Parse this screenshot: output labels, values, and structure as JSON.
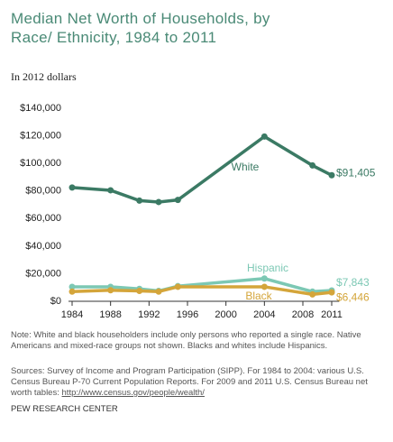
{
  "chart_data": {
    "type": "line",
    "title": "Median Net Worth of Households, by Race/ Ethnicity, 1984 to 2011",
    "subtitle": "In 2012 dollars",
    "x": [
      1984,
      1988,
      1991,
      1993,
      1995,
      2004,
      2009,
      2011
    ],
    "xlim": [
      1984,
      2011
    ],
    "xticks": [
      1984,
      1988,
      1992,
      1996,
      2000,
      2004,
      2008,
      2011
    ],
    "ylim": [
      0,
      140000
    ],
    "yticks": [
      {
        "value": 0,
        "label": "$0"
      },
      {
        "value": 20000,
        "label": "$20,000"
      },
      {
        "value": 40000,
        "label": "$40,000"
      },
      {
        "value": 60000,
        "label": "$60,000"
      },
      {
        "value": 80000,
        "label": "$80,000"
      },
      {
        "value": 100000,
        "label": "$100,000"
      },
      {
        "value": 120000,
        "label": "$120,000"
      },
      {
        "value": 140000,
        "label": "$140,000"
      }
    ],
    "grid": false,
    "series": [
      {
        "name": "White",
        "color": "#3b7a64",
        "values": [
          82500,
          80500,
          73000,
          72000,
          73500,
          119500,
          98500,
          91405
        ],
        "value_labels": [
          null,
          null,
          null,
          null,
          null,
          null,
          null,
          "$91,405"
        ]
      },
      {
        "name": "Hispanic",
        "color": "#7cc8b4",
        "values": [
          10500,
          10500,
          9000,
          7500,
          11000,
          16500,
          7000,
          7843
        ],
        "value_labels": [
          null,
          null,
          null,
          null,
          null,
          null,
          null,
          "$7,843"
        ]
      },
      {
        "name": "Black",
        "color": "#d4a53a",
        "values": [
          7000,
          8000,
          7500,
          7000,
          10500,
          10500,
          5000,
          6446
        ],
        "value_labels": [
          null,
          null,
          null,
          null,
          null,
          null,
          null,
          "$6,446"
        ]
      }
    ],
    "note": "Note: White and black householders include only persons who reported a single race. Native Americans and mixed-race groups not shown. Blacks and whites include Hispanics.",
    "source": "Sources: Survey of Income and Program Participation (SIPP). For 1984 to 2004: various U.S. Census Bureau P-70 Current Population Reports. For 2009 and 2011 U.S. Census Bureau net worth tables:",
    "source_link": "http://www.census.gov/people/wealth/",
    "credit": "PEW RESEARCH CENTER"
  }
}
